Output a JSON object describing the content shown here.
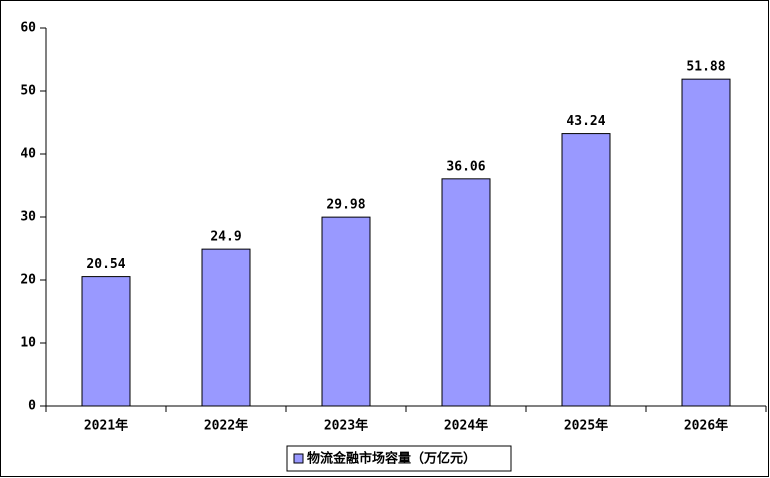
{
  "chart_data": {
    "type": "bar",
    "categories": [
      "2021年",
      "2022年",
      "2023年",
      "2024年",
      "2025年",
      "2026年"
    ],
    "series": [
      {
        "name": "物流金融市场容量（万亿元）",
        "color": "#9999ff",
        "values": [
          20.54,
          24.9,
          29.98,
          36.06,
          43.24,
          51.88
        ]
      }
    ],
    "ylim": [
      0,
      60
    ],
    "yticks": [
      0,
      10,
      20,
      30,
      40,
      50,
      60
    ],
    "grid": false,
    "legend": "bottom"
  }
}
